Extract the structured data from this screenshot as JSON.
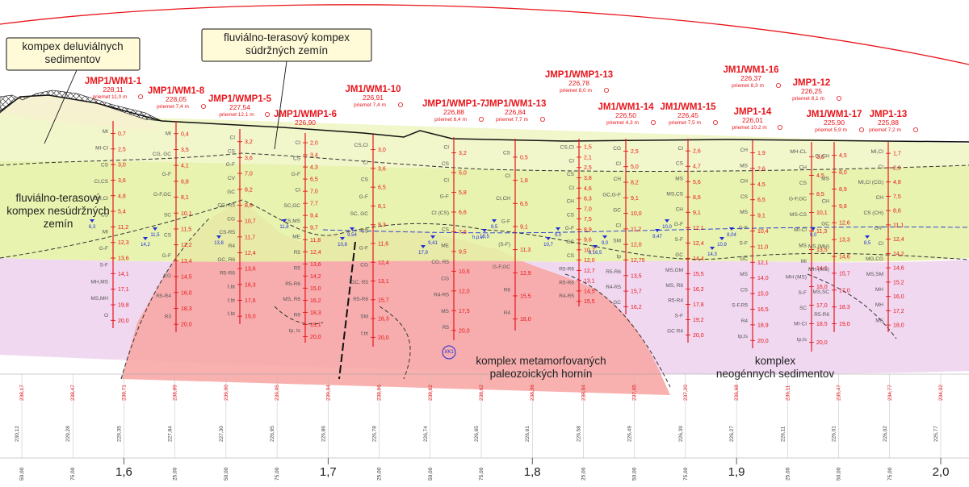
{
  "complexes": [
    {
      "id": "deluvial",
      "lines": [
        "kompex deluviálnych",
        "sedimentov"
      ]
    },
    {
      "id": "fluvial-cohesive",
      "lines": [
        "fluviálno-terasový kompex",
        "súdržných zemín"
      ]
    },
    {
      "id": "fluvial-noncohesive",
      "lines": [
        "fluviálno-terasový",
        "kompex nesúdržných",
        "zemín"
      ]
    },
    {
      "id": "metamorphic",
      "lines": [
        "komplex metamorfovaných",
        "paleozoických hornín"
      ]
    },
    {
      "id": "neogene",
      "lines": [
        "komplex",
        "neogénnych sedimentov"
      ]
    }
  ],
  "boreholes": [
    {
      "name": "JMP1/WM1-1",
      "elev": "228,11",
      "offset": "priemet 11,0 m",
      "depths": [
        "0,7",
        "2,5",
        "3,0",
        "3,6",
        "4,8",
        "5,4",
        "11,2",
        "12,3",
        "13,6",
        "14,1",
        "17,1",
        "19,8",
        "20,0"
      ],
      "soils": [
        "MI",
        "MI-CI",
        "CS",
        "CI,CS",
        "CH,CI",
        "CS",
        "MI",
        "G-F",
        "S-F",
        "MH,MS",
        "MS,MH",
        "O"
      ],
      "water": [
        "6,3"
      ]
    },
    {
      "name": "JMP1/WM1-8",
      "elev": "228,05",
      "offset": "priemet 7,4 m",
      "depths": [
        "0,4",
        "3,5",
        "4,1",
        "6,8",
        "8,1",
        "10,1",
        "11,5",
        "12,2",
        "13,4",
        "14,5",
        "16,0",
        "18,3",
        "20,0"
      ],
      "soils": [
        "MI",
        "CG, GC",
        "G-F",
        "G-F,GC",
        "SC",
        "CS",
        "G-F",
        "CG",
        "R5-R4",
        "R3"
      ],
      "water": [
        "11,5",
        "14,2"
      ]
    },
    {
      "name": "JMP1/WMP1-5",
      "elev": "227,54",
      "offset": "priemet 12,1 m",
      "depths": [
        "3,2",
        "3,6",
        "7,0",
        "8,2",
        "8,6",
        "10,7",
        "11,7",
        "12,4",
        "13,6",
        "16,3",
        "17,6",
        "19,0"
      ],
      "soils": [
        "CI",
        "CS",
        "G-F",
        "CV",
        "GC",
        "CG, R5",
        "CG",
        "CS-R5",
        "R4",
        "GC, R6",
        "R5-R6",
        "f,bt",
        "f,bt",
        "f,bt"
      ],
      "water": [
        "13,8"
      ]
    },
    {
      "name": "JMP1/WMP1-6",
      "elev": "226,90",
      "offset": "",
      "depths": [
        "2,0",
        "3,4",
        "4,3",
        "6,5",
        "7,0",
        "7,7",
        "9,4",
        "9,7",
        "11,8",
        "12,4",
        "13,6",
        "14,2",
        "15,0",
        "16,2",
        "18,3",
        "19,1",
        "20,0"
      ],
      "soils": [
        "CI",
        "CS",
        "G-F",
        "CI",
        "SC,GC",
        "CS,MS",
        "ME",
        "R5",
        "R5",
        "R5-R6",
        "MS, R6",
        "R6",
        "tp, ts"
      ],
      "water": [
        "11,8"
      ]
    },
    {
      "name": "JM1/WM1-10",
      "elev": "226,91",
      "offset": "priemet 7,4 m",
      "depths": [
        "3,0",
        "3,6",
        "6,5",
        "8,1",
        "9,3",
        "11,6",
        "12,4",
        "13,1",
        "15,7",
        "16,3",
        "20,0"
      ],
      "soils": [
        "CS,CI",
        "CI",
        "CS",
        "G-F",
        "SC, GC",
        "CS",
        "G-F",
        "CG",
        "GC, R5",
        "R5-R6",
        "SM",
        "f,bt"
      ],
      "water": [
        "9,54",
        "10,8"
      ]
    },
    {
      "name": "JMP1/WMP1-7",
      "elev": "226,88",
      "offset": "priemet 6,4 m",
      "depths": [
        "3,2",
        "5,0",
        "5,8",
        "6,6",
        "7,6",
        "9,5",
        "10,6",
        "12,0",
        "17,5",
        "20,0"
      ],
      "soils": [
        "CI",
        "CS",
        "CI",
        "G-F",
        "CI (CS)",
        "CS",
        "ME",
        "CG, R5",
        "CG",
        "R4-R5",
        "MS",
        "R5"
      ],
      "water": [
        "9,41",
        "17,9"
      ]
    },
    {
      "name": "JMP1/WM1-13",
      "elev": "226,84",
      "offset": "priemet 7,7 m",
      "depths": [
        "0,5",
        "1,8",
        "6,5",
        "9,1",
        "11,3",
        "12,9",
        "15,5",
        "18,0"
      ],
      "soils": [
        "CS",
        "CI",
        "CI,CH",
        "G-F",
        "(S-F)",
        "G-F,GC",
        "R6",
        "R4"
      ],
      "water": [
        "9,5",
        "18,5"
      ]
    },
    {
      "name": "JMP1/WMP1-13",
      "elev": "226,78",
      "offset": "priemet 8,0 m",
      "depths": [
        "1,5",
        "2,1",
        "2,5",
        "3,8",
        "4,6",
        "6,3",
        "7,0",
        "7,5",
        "8,9",
        "9,6",
        "10,7",
        "12,0",
        "12,7",
        "13,1",
        "14,5",
        "15,5"
      ],
      "soils": [
        "CS,CI",
        "CI",
        "CS",
        "CI",
        "CH",
        "CS",
        "G-F",
        "GC",
        "CS",
        "R5-R6",
        "R5-R6",
        "R4-R5"
      ],
      "water": [
        "9,0",
        "10,7"
      ]
    },
    {
      "name": "JM1/WM1-14",
      "elev": "226,50",
      "offset": "priemet 4,3 m",
      "depths": [
        "2,5",
        "5,0",
        "8,2",
        "9,1",
        "10,0",
        "11,2",
        "12,0",
        "12,75",
        "13,5",
        "15,7",
        "16,2"
      ],
      "soils": [
        "CG",
        "CI",
        "CH",
        "GC,G-F",
        "GC",
        "CI",
        "SM",
        "tp",
        "R5-R6",
        "R4-R5",
        "GC"
      ],
      "water": [
        "9,0",
        "8,16,5"
      ]
    },
    {
      "name": "JM1/WM1-15",
      "elev": "226,45",
      "offset": "priemet 7,5 m",
      "depths": [
        "2,6",
        "4,7",
        "5,6",
        "8,6",
        "9,1",
        "12,1",
        "12,4",
        "14,4",
        "15,5",
        "16,2",
        "17,8",
        "19,2",
        "20,0"
      ],
      "soils": [
        "CI",
        "CS",
        "MS",
        "MS,CS",
        "CH",
        "G-F",
        "S-F",
        "GC",
        "MS,GM",
        "MS, R6",
        "R5-R4",
        "S-F",
        "GC R4"
      ],
      "water": [
        "10,0",
        "9,47"
      ]
    },
    {
      "name": "JMP1-14",
      "elev": "226,01",
      "offset": "priemet 10,2 m",
      "depths": [
        "1,9",
        "2,6",
        "4,5",
        "6,5",
        "9,1",
        "10,4",
        "11,0",
        "12,1",
        "14,0",
        "15,0",
        "16,5",
        "18,9",
        "20,0"
      ],
      "soils": [
        "CH",
        "MS",
        "CH",
        "CS",
        "MS",
        "G-F",
        "S-F",
        "GC",
        "MS",
        "CS",
        "S-F,R5",
        "R4",
        "tp,ts"
      ],
      "water": [
        "8,04",
        "10,9",
        "14,3"
      ]
    },
    {
      "name": "JM1/WM1-16",
      "elev": "226,37",
      "offset": "priemet 8,3 m",
      "depths": [],
      "soils": [],
      "water": []
    },
    {
      "name": "JMP1-12",
      "elev": "226,25",
      "offset": "priemet 8,1 m",
      "depths": [
        "3,0",
        "4,5",
        "8,5",
        "10,1",
        "11,3",
        "13,5",
        "14,6",
        "16,0",
        "17,0",
        "18,5",
        "20,0"
      ],
      "soils": [
        "MH-CL",
        "CH",
        "CS",
        "G-F,GC",
        "MS-CS",
        "MI-CI",
        "MS",
        "MI",
        "MH (MS)",
        "S-F",
        "SC",
        "MI-CI",
        "tp,ts"
      ],
      "water": []
    },
    {
      "name": "JM1/WM1-17",
      "elev": "225,90",
      "offset": "priemet 5,9 m",
      "depths": [
        "4,5",
        "8,0",
        "8,9",
        "9,8",
        "12,6",
        "13,3",
        "14,6",
        "15,7",
        "17,0",
        "18,3",
        "19,0"
      ],
      "soils": [
        "CI,CH",
        "MS",
        "CH",
        "GC",
        "MS (MH)",
        "MH (MS)",
        "MS,SC",
        "R5-R6"
      ],
      "water": [
        "9,0"
      ]
    },
    {
      "name": "JMP1-13",
      "elev": "225,88",
      "offset": "priemet 7,2 m",
      "depths": [
        "1,7",
        "2,9",
        "4,8",
        "7,5",
        "8,6",
        "11,1",
        "12,4",
        "14,2",
        "14,6",
        "15,2",
        "16,0",
        "17,2",
        "18,0"
      ],
      "soils": [
        "MI,CI",
        "CI",
        "MI,CI (CG)",
        "CH",
        "CS (CH)",
        "G-F",
        "CI",
        "MG,CG",
        "MS,SM",
        "MH",
        "MH",
        "MS"
      ],
      "water": [
        "8,5"
      ]
    }
  ],
  "profile_labels": {
    "water_note": "h.p.v.",
    "marker": "XK1",
    "elev_black": [
      "230,12",
      "229,28",
      "229,35",
      "227,84",
      "227,30",
      "226,95",
      "226,86",
      "226,78",
      "226,74",
      "226,65",
      "226,61",
      "226,58",
      "226,49",
      "226,39",
      "226,27",
      "226,11",
      "226,01",
      "226,02",
      "225,77"
    ],
    "elev_red": [
      "238,17",
      "238,47",
      "238,71",
      "238,89",
      "239,00",
      "239,05",
      "239,04",
      "238,96",
      "238,82",
      "238,62",
      "238,36",
      "238,04",
      "237,65",
      "237,20",
      "236,68",
      "236,11",
      "235,47",
      "234,77",
      "234,02"
    ],
    "stations": [
      "50,00",
      "75,00",
      "1,6",
      "25,00",
      "50,00",
      "75,00",
      "1,7",
      "25,00",
      "50,00",
      "75,00",
      "1,8",
      "25,00",
      "50,00",
      "75,00",
      "1,9",
      "25,00",
      "50,00",
      "75,00",
      "2,0"
    ],
    "kilometers": [
      "1,6",
      "1,7",
      "1,8",
      "1,9",
      "2,0"
    ]
  }
}
